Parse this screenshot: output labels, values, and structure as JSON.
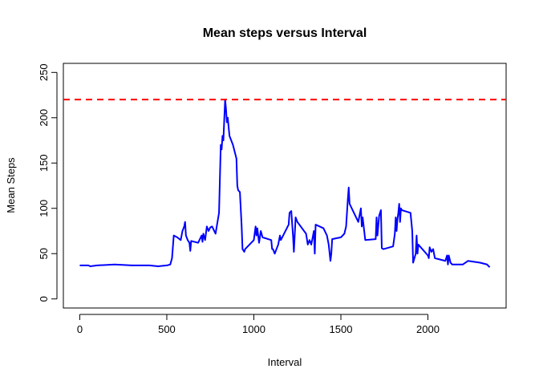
{
  "chart_data": {
    "type": "line",
    "title": "Mean steps versus Interval",
    "x_label": "Interval",
    "y_label": "Mean Steps",
    "color": "#0000ff",
    "x": [
      0,
      50,
      60,
      100,
      200,
      300,
      400,
      450,
      500,
      520,
      530,
      540,
      560,
      580,
      590,
      600,
      605,
      610,
      620,
      630,
      635,
      640,
      660,
      680,
      690,
      700,
      705,
      710,
      720,
      730,
      740,
      750,
      760,
      780,
      800,
      810,
      815,
      820,
      825,
      835,
      840,
      845,
      850,
      860,
      880,
      900,
      905,
      910,
      920,
      930,
      935,
      945,
      950,
      1000,
      1010,
      1015,
      1020,
      1030,
      1040,
      1050,
      1100,
      1105,
      1110,
      1120,
      1130,
      1140,
      1150,
      1155,
      1200,
      1205,
      1215,
      1225,
      1230,
      1240,
      1250,
      1300,
      1310,
      1320,
      1330,
      1340,
      1345,
      1350,
      1355,
      1400,
      1420,
      1430,
      1440,
      1445,
      1450,
      1500,
      1520,
      1530,
      1540,
      1545,
      1550,
      1600,
      1615,
      1620,
      1625,
      1640,
      1700,
      1705,
      1710,
      1720,
      1730,
      1735,
      1745,
      1800,
      1810,
      1815,
      1820,
      1825,
      1830,
      1835,
      1840,
      1845,
      1850,
      1900,
      1910,
      1915,
      1930,
      1935,
      1940,
      1945,
      2000,
      2005,
      2010,
      2020,
      2030,
      2040,
      2100,
      2110,
      2115,
      2120,
      2130,
      2140,
      2200,
      2230,
      2300,
      2340,
      2355
    ],
    "values": [
      37,
      37,
      36,
      37,
      38,
      37,
      37,
      36,
      37,
      38,
      45,
      70,
      68,
      65,
      75,
      80,
      85,
      70,
      65,
      62,
      53,
      64,
      63,
      62,
      66,
      70,
      63,
      72,
      65,
      80,
      75,
      79,
      80,
      72,
      95,
      170,
      165,
      180,
      175,
      220,
      210,
      195,
      200,
      180,
      170,
      155,
      125,
      120,
      118,
      80,
      55,
      52,
      55,
      65,
      80,
      70,
      78,
      62,
      75,
      68,
      65,
      55,
      55,
      50,
      55,
      60,
      70,
      65,
      82,
      95,
      97,
      70,
      52,
      90,
      85,
      72,
      60,
      65,
      60,
      70,
      75,
      50,
      82,
      78,
      70,
      60,
      42,
      50,
      66,
      68,
      72,
      80,
      110,
      123,
      105,
      85,
      100,
      80,
      90,
      65,
      66,
      90,
      70,
      92,
      98,
      56,
      55,
      58,
      72,
      90,
      75,
      88,
      95,
      105,
      85,
      100,
      98,
      95,
      75,
      40,
      50,
      70,
      50,
      60,
      48,
      45,
      57,
      52,
      55,
      45,
      42,
      48,
      38,
      48,
      40,
      38,
      38,
      42,
      40,
      38,
      35
    ],
    "reference_line": {
      "value": 220,
      "color": "#ff0000"
    },
    "xlim": [
      -94.2,
      2449.2
    ],
    "ylim": [
      -10,
      260
    ],
    "xticks": [
      0,
      500,
      1000,
      1500,
      2000
    ],
    "yticks": [
      0,
      50,
      100,
      150,
      200,
      250
    ]
  }
}
